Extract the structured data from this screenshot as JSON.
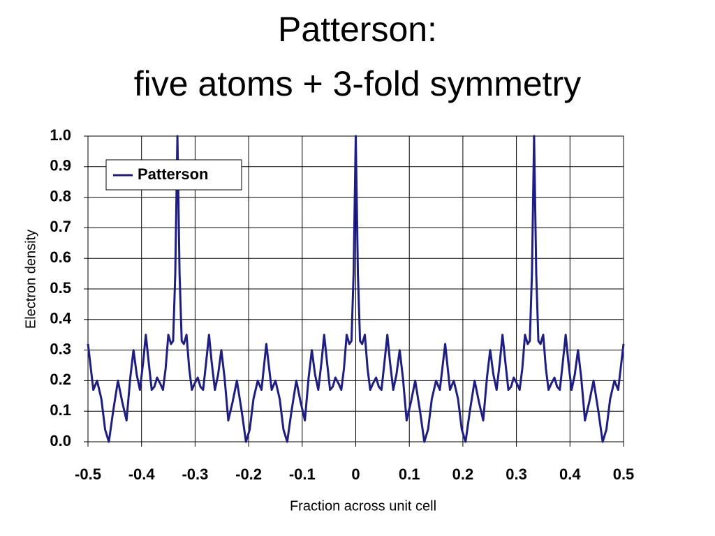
{
  "chart_data": {
    "type": "line",
    "title": "Patterson:",
    "subtitle": "five atoms + 3-fold symmetry",
    "x_label": "Fraction across unit cell",
    "y_label": "Electron density",
    "legend": "upper-left",
    "grid": true,
    "xlim": [
      -0.5,
      0.5
    ],
    "ylim": [
      0,
      1
    ],
    "xticks": [
      -0.5,
      -0.4,
      -0.3,
      -0.2,
      -0.1,
      0,
      0.1,
      0.2,
      0.3,
      0.4,
      0.5
    ],
    "yticks": [
      {
        "value": 0,
        "label": "0.0"
      },
      0.1,
      0.2,
      0.3,
      0.4,
      0.5,
      0.6,
      0.7,
      0.8,
      0.9,
      {
        "value": 1,
        "label": "1.0"
      }
    ],
    "x": [
      -0.5,
      -0.49,
      -0.483,
      -0.475,
      -0.468,
      -0.461,
      -0.453,
      -0.444,
      -0.436,
      -0.428,
      -0.421,
      -0.415,
      -0.409,
      -0.403,
      -0.397,
      -0.392,
      -0.386,
      -0.381,
      -0.376,
      -0.371,
      -0.365,
      -0.36,
      -0.355,
      -0.35,
      -0.345,
      -0.341,
      -0.337,
      -0.333,
      -0.329,
      -0.325,
      -0.321,
      -0.316,
      -0.311,
      -0.306,
      -0.301,
      -0.295,
      -0.29,
      -0.285,
      -0.28,
      -0.274,
      -0.269,
      -0.263,
      -0.257,
      -0.251,
      -0.245,
      -0.238,
      -0.23,
      -0.222,
      -0.213,
      -0.205,
      -0.198,
      -0.191,
      -0.183,
      -0.176,
      -0.167,
      -0.157,
      -0.15,
      -0.142,
      -0.135,
      -0.128,
      -0.12,
      -0.111,
      -0.103,
      -0.095,
      -0.088,
      -0.082,
      -0.076,
      -0.07,
      -0.064,
      -0.059,
      -0.053,
      -0.048,
      -0.043,
      -0.038,
      -0.032,
      -0.027,
      -0.022,
      -0.017,
      -0.012,
      -0.008,
      -0.004,
      0,
      0.004,
      0.008,
      0.012,
      0.017,
      0.022,
      0.027,
      0.032,
      0.038,
      0.043,
      0.048,
      0.053,
      0.059,
      0.064,
      0.07,
      0.076,
      0.082,
      0.088,
      0.095,
      0.103,
      0.111,
      0.12,
      0.128,
      0.135,
      0.142,
      0.15,
      0.157,
      0.167,
      0.176,
      0.183,
      0.191,
      0.198,
      0.205,
      0.213,
      0.222,
      0.23,
      0.238,
      0.245,
      0.251,
      0.257,
      0.263,
      0.269,
      0.274,
      0.28,
      0.285,
      0.29,
      0.295,
      0.301,
      0.306,
      0.311,
      0.316,
      0.321,
      0.325,
      0.329,
      0.333,
      0.337,
      0.341,
      0.345,
      0.35,
      0.355,
      0.36,
      0.365,
      0.371,
      0.376,
      0.381,
      0.386,
      0.392,
      0.397,
      0.403,
      0.409,
      0.415,
      0.421,
      0.428,
      0.436,
      0.444,
      0.453,
      0.461,
      0.468,
      0.475,
      0.483,
      0.49,
      0.5
    ],
    "series": [
      {
        "name": "Patterson",
        "color": "#1c1c8a",
        "values": [
          0.32,
          0.17,
          0.2,
          0.14,
          0.04,
          0.0,
          0.1,
          0.2,
          0.13,
          0.07,
          0.21,
          0.3,
          0.22,
          0.17,
          0.26,
          0.35,
          0.25,
          0.17,
          0.18,
          0.21,
          0.19,
          0.17,
          0.24,
          0.35,
          0.32,
          0.33,
          0.55,
          1.0,
          0.55,
          0.33,
          0.32,
          0.35,
          0.24,
          0.17,
          0.19,
          0.21,
          0.18,
          0.17,
          0.25,
          0.35,
          0.26,
          0.17,
          0.22,
          0.3,
          0.21,
          0.07,
          0.13,
          0.2,
          0.1,
          0.0,
          0.04,
          0.14,
          0.2,
          0.17,
          0.32,
          0.17,
          0.2,
          0.14,
          0.04,
          0.0,
          0.1,
          0.2,
          0.13,
          0.07,
          0.21,
          0.3,
          0.22,
          0.17,
          0.26,
          0.35,
          0.25,
          0.17,
          0.18,
          0.21,
          0.19,
          0.17,
          0.24,
          0.35,
          0.32,
          0.33,
          0.55,
          1.0,
          0.55,
          0.33,
          0.32,
          0.35,
          0.24,
          0.17,
          0.19,
          0.21,
          0.18,
          0.17,
          0.25,
          0.35,
          0.26,
          0.17,
          0.22,
          0.3,
          0.21,
          0.07,
          0.13,
          0.2,
          0.1,
          0.0,
          0.04,
          0.14,
          0.2,
          0.17,
          0.32,
          0.17,
          0.2,
          0.14,
          0.04,
          0.0,
          0.1,
          0.2,
          0.13,
          0.07,
          0.21,
          0.3,
          0.22,
          0.17,
          0.26,
          0.35,
          0.25,
          0.17,
          0.18,
          0.21,
          0.19,
          0.17,
          0.24,
          0.35,
          0.32,
          0.33,
          0.55,
          1.0,
          0.55,
          0.33,
          0.32,
          0.35,
          0.24,
          0.17,
          0.19,
          0.21,
          0.18,
          0.17,
          0.25,
          0.35,
          0.26,
          0.17,
          0.22,
          0.3,
          0.21,
          0.07,
          0.13,
          0.2,
          0.1,
          0.0,
          0.04,
          0.14,
          0.2,
          0.17,
          0.32
        ]
      }
    ]
  }
}
